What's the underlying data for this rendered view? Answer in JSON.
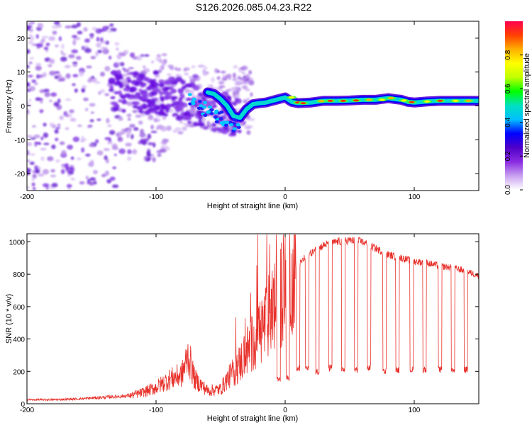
{
  "title": "S126.2026.085.04.23.R22",
  "chart_data": [
    {
      "type": "heatmap",
      "title": "S126.2026.085.04.23.R22",
      "xlabel": "Height of straight line (km)",
      "ylabel": "Frequency (Hz)",
      "xlim": [
        -200,
        150
      ],
      "ylim": [
        -25,
        25
      ],
      "xticks": [
        -200,
        -100,
        0,
        100
      ],
      "yticks": [
        -20,
        -10,
        0,
        10,
        20
      ],
      "colorbar": {
        "label": "Normalized spectral amplitude",
        "range": [
          0,
          1
        ],
        "ticks": [
          0.0,
          0.2,
          0.4,
          0.6,
          0.8
        ],
        "colors": [
          "#ffffff",
          "#c8a0f0",
          "#8a2be2",
          "#5000c8",
          "#0000ff",
          "#00bfff",
          "#00e0c0",
          "#00ff00",
          "#c0ff00",
          "#ffff00",
          "#ffb000",
          "#ff4000",
          "#ff0050"
        ]
      },
      "ridge": {
        "description": "dominant frequency track, Hz vs km",
        "x": [
          -60,
          -55,
          -50,
          -45,
          -40,
          -35,
          -30,
          -25,
          -20,
          -15,
          -10,
          -5,
          0,
          5,
          10,
          20,
          30,
          40,
          50,
          60,
          70,
          80,
          85,
          90,
          95,
          100,
          110,
          120,
          130,
          140,
          150
        ],
        "y": [
          4,
          3.5,
          2,
          0,
          -3,
          -3.5,
          -1,
          0.5,
          0.8,
          1,
          1.5,
          2,
          2.5,
          1.2,
          0.8,
          1,
          1.5,
          1.5,
          1.6,
          1.8,
          1.8,
          2.3,
          2,
          1.8,
          1.2,
          1,
          1.3,
          1.5,
          1.5,
          1.5,
          1.5
        ]
      }
    },
    {
      "type": "line",
      "xlabel": "Height of straight line (km)",
      "ylabel": "SNR (10 * v/v)",
      "xlim": [
        -200,
        150
      ],
      "ylim": [
        0,
        1050
      ],
      "xticks": [
        -200,
        -100,
        0,
        100
      ],
      "yticks": [
        0,
        200,
        400,
        600,
        800,
        1000
      ],
      "color": "#e8302a",
      "series": [
        {
          "name": "SNR",
          "x": [
            -200,
            -180,
            -160,
            -140,
            -120,
            -110,
            -100,
            -90,
            -80,
            -75,
            -70,
            -60,
            -50,
            -45,
            -40,
            -35,
            -30,
            -25,
            -20,
            -15,
            -10,
            -5,
            0,
            5,
            10,
            15,
            20,
            30,
            40,
            50,
            60,
            70,
            80,
            90,
            100,
            110,
            120,
            130,
            140,
            150
          ],
          "values": [
            25,
            25,
            30,
            40,
            50,
            70,
            100,
            150,
            180,
            300,
            150,
            80,
            90,
            150,
            200,
            250,
            320,
            380,
            450,
            500,
            580,
            650,
            750,
            820,
            850,
            900,
            930,
            980,
            1000,
            1010,
            1000,
            960,
            920,
            900,
            880,
            870,
            850,
            840,
            820,
            790
          ]
        }
      ],
      "dropouts": {
        "description": "periodic dips in SNR",
        "x": [
          -5,
          2,
          10,
          17,
          25,
          35,
          45,
          55,
          65,
          77,
          87,
          98,
          108,
          120,
          130,
          140
        ],
        "values": [
          150,
          160,
          220,
          220,
          200,
          220,
          210,
          210,
          220,
          200,
          210,
          210,
          210,
          210,
          210,
          210
        ]
      }
    }
  ]
}
